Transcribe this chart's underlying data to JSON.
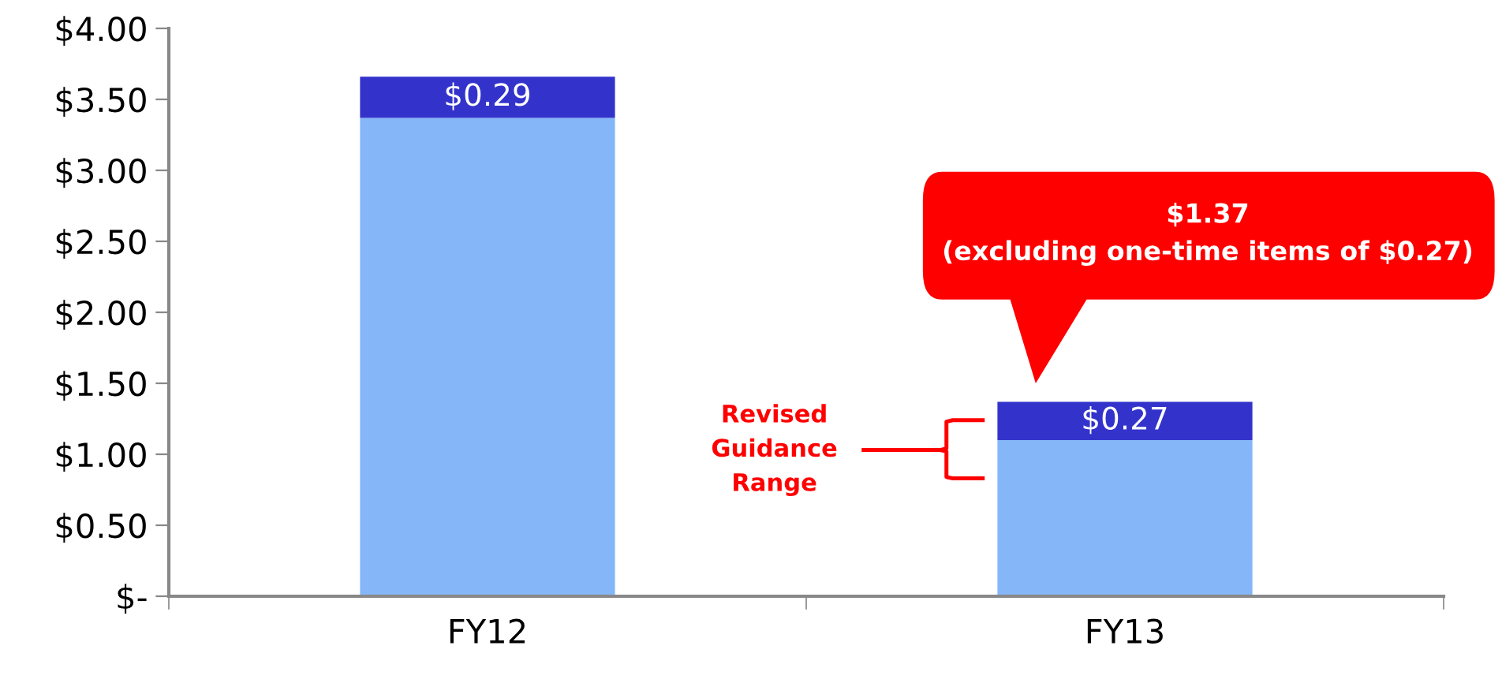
{
  "chart_data": {
    "type": "bar",
    "stacked": true,
    "categories": [
      "FY12",
      "FY13"
    ],
    "series": [
      {
        "color": "#84b6f8",
        "values": [
          3.37,
          1.1
        ]
      },
      {
        "color": "#3333cc",
        "values": [
          0.29,
          0.27
        ],
        "value_labels": [
          "$0.29",
          "$0.27"
        ]
      }
    ],
    "ylim": [
      0,
      4
    ],
    "yticks": [
      {
        "value": 0,
        "label": "$-"
      },
      {
        "value": 0.5,
        "label": "$0.50"
      },
      {
        "value": 1,
        "label": "$1.00"
      },
      {
        "value": 1.5,
        "label": "$1.50"
      },
      {
        "value": 2,
        "label": "$2.00"
      },
      {
        "value": 2.5,
        "label": "$2.50"
      },
      {
        "value": 3,
        "label": "$3.00"
      },
      {
        "value": 3.5,
        "label": "$3.50"
      },
      {
        "value": 4,
        "label": "$4.00"
      }
    ],
    "annotations": [
      "$1.37\n(excluding one-time items of $0.27)",
      "Revised\nGuidance\nRange"
    ]
  }
}
